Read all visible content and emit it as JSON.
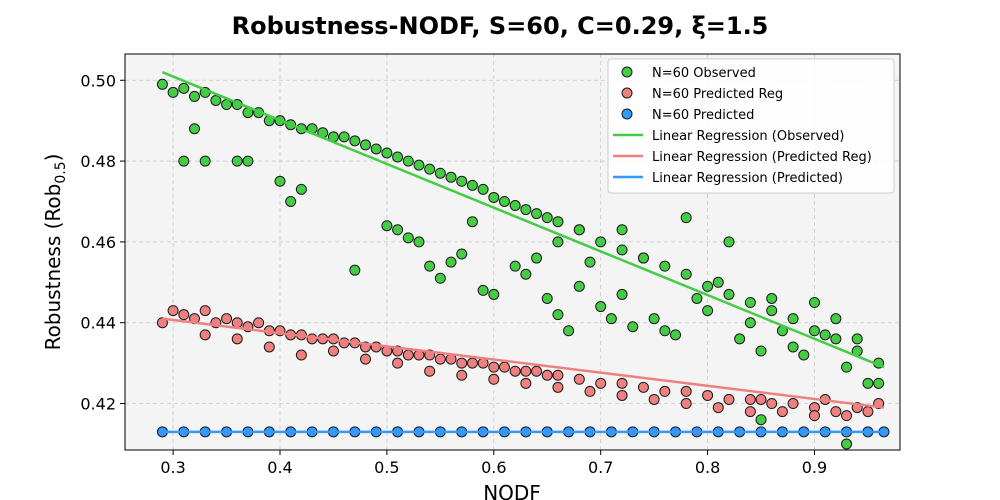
{
  "chart_data": {
    "type": "scatter",
    "title": "Robustness-NODF, S=60, C=0.29, ξ=1.5",
    "xlabel": "NODF",
    "ylabel": "Robustness (Rob",
    "ylabel_sub": "0.5",
    "ylabel_close": ")",
    "xlim": [
      0.255,
      0.98
    ],
    "ylim": [
      0.4085,
      0.5065
    ],
    "xticks": [
      0.3,
      0.4,
      0.5,
      0.6,
      0.7,
      0.8,
      0.9
    ],
    "xtick_labels": [
      "0.3",
      "0.4",
      "0.5",
      "0.6",
      "0.7",
      "0.8",
      "0.9"
    ],
    "yticks": [
      0.42,
      0.44,
      0.46,
      0.48,
      0.5
    ],
    "ytick_labels": [
      "0.42",
      "0.44",
      "0.46",
      "0.48",
      "0.50"
    ],
    "grid": true,
    "legend_position": "top-right",
    "series": [
      {
        "name": "N=60 Observed",
        "kind": "scatter",
        "color": "#44cc44",
        "points": [
          [
            0.29,
            0.499
          ],
          [
            0.3,
            0.497
          ],
          [
            0.31,
            0.498
          ],
          [
            0.32,
            0.496
          ],
          [
            0.33,
            0.497
          ],
          [
            0.34,
            0.495
          ],
          [
            0.35,
            0.494
          ],
          [
            0.36,
            0.494
          ],
          [
            0.37,
            0.492
          ],
          [
            0.38,
            0.492
          ],
          [
            0.39,
            0.49
          ],
          [
            0.4,
            0.49
          ],
          [
            0.41,
            0.489
          ],
          [
            0.42,
            0.488
          ],
          [
            0.43,
            0.488
          ],
          [
            0.44,
            0.487
          ],
          [
            0.45,
            0.486
          ],
          [
            0.46,
            0.486
          ],
          [
            0.47,
            0.485
          ],
          [
            0.48,
            0.484
          ],
          [
            0.49,
            0.483
          ],
          [
            0.5,
            0.482
          ],
          [
            0.51,
            0.481
          ],
          [
            0.52,
            0.48
          ],
          [
            0.53,
            0.479
          ],
          [
            0.54,
            0.478
          ],
          [
            0.55,
            0.477
          ],
          [
            0.56,
            0.476
          ],
          [
            0.57,
            0.475
          ],
          [
            0.58,
            0.474
          ],
          [
            0.59,
            0.473
          ],
          [
            0.6,
            0.471
          ],
          [
            0.61,
            0.47
          ],
          [
            0.62,
            0.469
          ],
          [
            0.63,
            0.468
          ],
          [
            0.64,
            0.467
          ],
          [
            0.65,
            0.466
          ],
          [
            0.66,
            0.465
          ],
          [
            0.68,
            0.463
          ],
          [
            0.7,
            0.46
          ],
          [
            0.72,
            0.458
          ],
          [
            0.74,
            0.456
          ],
          [
            0.76,
            0.454
          ],
          [
            0.78,
            0.452
          ],
          [
            0.8,
            0.449
          ],
          [
            0.82,
            0.447
          ],
          [
            0.84,
            0.445
          ],
          [
            0.86,
            0.443
          ],
          [
            0.88,
            0.441
          ],
          [
            0.9,
            0.438
          ],
          [
            0.92,
            0.436
          ],
          [
            0.94,
            0.433
          ],
          [
            0.96,
            0.43
          ],
          [
            0.32,
            0.488
          ],
          [
            0.31,
            0.48
          ],
          [
            0.33,
            0.48
          ],
          [
            0.36,
            0.48
          ],
          [
            0.37,
            0.48
          ],
          [
            0.4,
            0.475
          ],
          [
            0.42,
            0.473
          ],
          [
            0.41,
            0.47
          ],
          [
            0.47,
            0.453
          ],
          [
            0.5,
            0.464
          ],
          [
            0.51,
            0.463
          ],
          [
            0.52,
            0.461
          ],
          [
            0.54,
            0.454
          ],
          [
            0.55,
            0.451
          ],
          [
            0.57,
            0.457
          ],
          [
            0.59,
            0.448
          ],
          [
            0.6,
            0.447
          ],
          [
            0.62,
            0.454
          ],
          [
            0.63,
            0.452
          ],
          [
            0.65,
            0.446
          ],
          [
            0.66,
            0.442
          ],
          [
            0.67,
            0.438
          ],
          [
            0.68,
            0.449
          ],
          [
            0.7,
            0.444
          ],
          [
            0.71,
            0.441
          ],
          [
            0.72,
            0.447
          ],
          [
            0.73,
            0.439
          ],
          [
            0.75,
            0.441
          ],
          [
            0.76,
            0.438
          ],
          [
            0.77,
            0.437
          ],
          [
            0.79,
            0.446
          ],
          [
            0.8,
            0.443
          ],
          [
            0.81,
            0.45
          ],
          [
            0.83,
            0.436
          ],
          [
            0.84,
            0.44
          ],
          [
            0.85,
            0.433
          ],
          [
            0.86,
            0.446
          ],
          [
            0.87,
            0.438
          ],
          [
            0.88,
            0.434
          ],
          [
            0.89,
            0.432
          ],
          [
            0.9,
            0.445
          ],
          [
            0.91,
            0.437
          ],
          [
            0.92,
            0.441
          ],
          [
            0.93,
            0.429
          ],
          [
            0.94,
            0.436
          ],
          [
            0.95,
            0.425
          ],
          [
            0.96,
            0.425
          ],
          [
            0.93,
            0.41
          ],
          [
            0.85,
            0.416
          ],
          [
            0.78,
            0.466
          ],
          [
            0.82,
            0.46
          ],
          [
            0.66,
            0.46
          ],
          [
            0.69,
            0.455
          ],
          [
            0.74,
            0.456
          ],
          [
            0.53,
            0.46
          ],
          [
            0.56,
            0.455
          ],
          [
            0.58,
            0.465
          ],
          [
            0.64,
            0.456
          ],
          [
            0.68,
            0.463
          ],
          [
            0.72,
            0.463
          ]
        ]
      },
      {
        "name": "N=60 Predicted Reg",
        "kind": "scatter",
        "color": "#f08080",
        "points": [
          [
            0.29,
            0.44
          ],
          [
            0.3,
            0.443
          ],
          [
            0.31,
            0.442
          ],
          [
            0.32,
            0.441
          ],
          [
            0.33,
            0.443
          ],
          [
            0.34,
            0.44
          ],
          [
            0.35,
            0.441
          ],
          [
            0.36,
            0.44
          ],
          [
            0.37,
            0.439
          ],
          [
            0.38,
            0.44
          ],
          [
            0.39,
            0.438
          ],
          [
            0.4,
            0.438
          ],
          [
            0.41,
            0.437
          ],
          [
            0.42,
            0.437
          ],
          [
            0.43,
            0.436
          ],
          [
            0.44,
            0.436
          ],
          [
            0.45,
            0.436
          ],
          [
            0.46,
            0.435
          ],
          [
            0.47,
            0.435
          ],
          [
            0.48,
            0.434
          ],
          [
            0.49,
            0.434
          ],
          [
            0.5,
            0.433
          ],
          [
            0.51,
            0.433
          ],
          [
            0.52,
            0.432
          ],
          [
            0.53,
            0.432
          ],
          [
            0.54,
            0.432
          ],
          [
            0.55,
            0.431
          ],
          [
            0.56,
            0.431
          ],
          [
            0.57,
            0.43
          ],
          [
            0.58,
            0.43
          ],
          [
            0.59,
            0.43
          ],
          [
            0.6,
            0.429
          ],
          [
            0.61,
            0.429
          ],
          [
            0.62,
            0.428
          ],
          [
            0.63,
            0.428
          ],
          [
            0.64,
            0.428
          ],
          [
            0.65,
            0.427
          ],
          [
            0.66,
            0.427
          ],
          [
            0.68,
            0.426
          ],
          [
            0.7,
            0.425
          ],
          [
            0.72,
            0.425
          ],
          [
            0.74,
            0.424
          ],
          [
            0.76,
            0.423
          ],
          [
            0.78,
            0.423
          ],
          [
            0.8,
            0.422
          ],
          [
            0.82,
            0.421
          ],
          [
            0.84,
            0.421
          ],
          [
            0.86,
            0.42
          ],
          [
            0.88,
            0.42
          ],
          [
            0.9,
            0.419
          ],
          [
            0.92,
            0.418
          ],
          [
            0.94,
            0.419
          ],
          [
            0.96,
            0.42
          ],
          [
            0.33,
            0.437
          ],
          [
            0.36,
            0.436
          ],
          [
            0.39,
            0.434
          ],
          [
            0.42,
            0.432
          ],
          [
            0.45,
            0.433
          ],
          [
            0.48,
            0.431
          ],
          [
            0.51,
            0.43
          ],
          [
            0.54,
            0.428
          ],
          [
            0.57,
            0.427
          ],
          [
            0.6,
            0.426
          ],
          [
            0.63,
            0.425
          ],
          [
            0.66,
            0.424
          ],
          [
            0.69,
            0.423
          ],
          [
            0.72,
            0.422
          ],
          [
            0.75,
            0.421
          ],
          [
            0.78,
            0.42
          ],
          [
            0.81,
            0.419
          ],
          [
            0.84,
            0.418
          ],
          [
            0.87,
            0.418
          ],
          [
            0.9,
            0.417
          ],
          [
            0.93,
            0.417
          ],
          [
            0.95,
            0.418
          ],
          [
            0.85,
            0.421
          ],
          [
            0.91,
            0.421
          ]
        ]
      },
      {
        "name": "N=60 Predicted",
        "kind": "scatter",
        "color": "#3399ff",
        "points": [
          [
            0.29,
            0.413
          ],
          [
            0.31,
            0.413
          ],
          [
            0.33,
            0.413
          ],
          [
            0.35,
            0.413
          ],
          [
            0.37,
            0.413
          ],
          [
            0.39,
            0.413
          ],
          [
            0.41,
            0.413
          ],
          [
            0.43,
            0.413
          ],
          [
            0.45,
            0.413
          ],
          [
            0.47,
            0.413
          ],
          [
            0.49,
            0.413
          ],
          [
            0.51,
            0.413
          ],
          [
            0.53,
            0.413
          ],
          [
            0.55,
            0.413
          ],
          [
            0.57,
            0.413
          ],
          [
            0.59,
            0.413
          ],
          [
            0.61,
            0.413
          ],
          [
            0.63,
            0.413
          ],
          [
            0.65,
            0.413
          ],
          [
            0.67,
            0.413
          ],
          [
            0.69,
            0.413
          ],
          [
            0.71,
            0.413
          ],
          [
            0.73,
            0.413
          ],
          [
            0.75,
            0.413
          ],
          [
            0.77,
            0.413
          ],
          [
            0.79,
            0.413
          ],
          [
            0.81,
            0.413
          ],
          [
            0.83,
            0.413
          ],
          [
            0.85,
            0.413
          ],
          [
            0.87,
            0.413
          ],
          [
            0.89,
            0.413
          ],
          [
            0.91,
            0.413
          ],
          [
            0.93,
            0.413
          ],
          [
            0.95,
            0.413
          ],
          [
            0.965,
            0.413
          ]
        ]
      },
      {
        "name": "Linear Regression (Observed)",
        "kind": "line",
        "color": "#44cc44",
        "x": [
          0.29,
          0.965
        ],
        "y": [
          0.502,
          0.429
        ]
      },
      {
        "name": "Linear Regression (Predicted Reg)",
        "kind": "line",
        "color": "#f08080",
        "x": [
          0.29,
          0.965
        ],
        "y": [
          0.441,
          0.419
        ]
      },
      {
        "name": "Linear Regression (Predicted)",
        "kind": "line",
        "color": "#3399ff",
        "x": [
          0.29,
          0.965
        ],
        "y": [
          0.413,
          0.413
        ]
      }
    ]
  }
}
